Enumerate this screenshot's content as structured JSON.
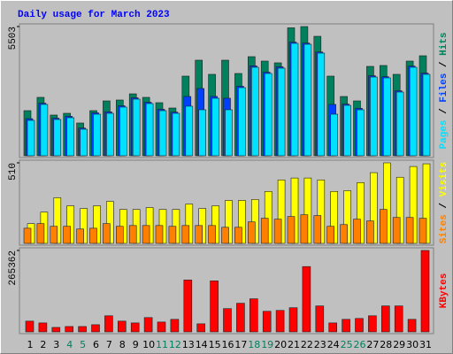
{
  "chart_data": {
    "type": "bar",
    "title": "Daily usage for March 2023",
    "separator": " / ",
    "categories": [
      "1",
      "2",
      "3",
      "4",
      "5",
      "6",
      "7",
      "8",
      "9",
      "10",
      "11",
      "12",
      "13",
      "14",
      "15",
      "16",
      "17",
      "18",
      "19",
      "20",
      "21",
      "22",
      "23",
      "24",
      "25",
      "26",
      "27",
      "28",
      "29",
      "30",
      "31"
    ],
    "category_colors": [
      "#000000",
      "#000000",
      "#000000",
      "#00805f",
      "#00805f",
      "#000000",
      "#000000",
      "#000000",
      "#000000",
      "#000000",
      "#00805f",
      "#00805f",
      "#000000",
      "#000000",
      "#000000",
      "#000000",
      "#000000",
      "#00805f",
      "#00805f",
      "#000000",
      "#000000",
      "#000000",
      "#000000",
      "#000000",
      "#00805f",
      "#00805f",
      "#000000",
      "#000000",
      "#000000",
      "#000000",
      "#000000"
    ],
    "panels": [
      {
        "ylim": [
          0,
          5503
        ],
        "yticks": [
          5503
        ],
        "legend_order": [
          2,
          1,
          0
        ],
        "series": [
          {
            "name": "Hits",
            "color": "#00805c",
            "values": [
              1922,
              2488,
              1734,
              1809,
              1395,
              1922,
              2337,
              2375,
              2638,
              2488,
              2261,
              2035,
              3392,
              4071,
              3468,
              4071,
              3505,
              4221,
              4033,
              3958,
              5450,
              5503,
              5088,
              3392,
              2525,
              2337,
              3807,
              3845,
              3468,
              4033,
              4259
            ]
          },
          {
            "name": "Files",
            "color": "#0040ff",
            "values": [
              1580,
              2240,
              1600,
              1680,
              1180,
              1830,
              1870,
              2130,
              2470,
              2280,
              1980,
              1860,
              2525,
              2865,
              2530,
              2450,
              2960,
              3830,
              3560,
              3790,
              4840,
              4800,
              4420,
              2186,
              2200,
              2020,
              3410,
              3370,
              2770,
              3820,
              3520
            ]
          },
          {
            "name": "Pages",
            "color": "#00e0ff",
            "values": [
              1508,
              2186,
              1545,
              1621,
              1131,
              1771,
              1809,
              2073,
              2412,
              2224,
              1922,
              1809,
              2111,
              1960,
              2450,
              1960,
              2902,
              3769,
              3505,
              3731,
              4787,
              4749,
              4372,
              1771,
              2148,
              1960,
              3354,
              3317,
              2714,
              3769,
              3468
            ]
          }
        ]
      },
      {
        "ylim": [
          0,
          510
        ],
        "yticks": [
          510
        ],
        "legend_order": [
          1,
          0
        ],
        "series": [
          {
            "name": "Visits",
            "color": "#ffff00",
            "values": [
              125,
              198,
              289,
              238,
              221,
              238,
              266,
              215,
              215,
              227,
              215,
              215,
              249,
              221,
              238,
              272,
              272,
              278,
              329,
              402,
              414,
              414,
              402,
              329,
              334,
              385,
              448,
              510,
              419,
              487,
              504
            ]
          },
          {
            "name": "Sites",
            "color": "#ff8000",
            "values": [
              96,
              125,
              108,
              108,
              91,
              96,
              125,
              108,
              113,
              113,
              113,
              108,
              113,
              113,
              113,
              102,
              102,
              136,
              159,
              153,
              170,
              181,
              176,
              108,
              119,
              153,
              142,
              215,
              164,
              164,
              159
            ]
          }
        ]
      },
      {
        "ylim": [
          0,
          265362
        ],
        "yticks": [
          265362
        ],
        "legend_order": [
          0
        ],
        "series": [
          {
            "name": "KBytes",
            "color": "#ff0000",
            "values": [
              34993,
              29161,
              14580,
              17497,
              17497,
              23329,
              52490,
              34993,
              29161,
              46657,
              32077,
              40825,
              169132,
              26245,
              166216,
              75818,
              93315,
              107895,
              67070,
              69986,
              78734,
              212873,
              84566,
              29161,
              40825,
              43741,
              52490,
              84566,
              84566,
              40825,
              265362
            ]
          }
        ]
      }
    ]
  }
}
